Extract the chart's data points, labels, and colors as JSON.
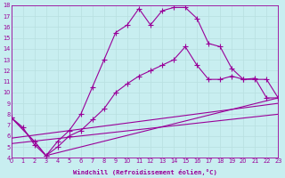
{
  "xlabel": "Windchill (Refroidissement éolien,°C)",
  "bg_color": "#c8eef0",
  "line_color": "#990099",
  "grid_color": "#b8dfe0",
  "xlim": [
    0,
    23
  ],
  "ylim": [
    4,
    18
  ],
  "xticks": [
    0,
    1,
    2,
    3,
    4,
    5,
    6,
    7,
    8,
    9,
    10,
    11,
    12,
    13,
    14,
    15,
    16,
    17,
    18,
    19,
    20,
    21,
    22,
    23
  ],
  "yticks": [
    4,
    5,
    6,
    7,
    8,
    9,
    10,
    11,
    12,
    13,
    14,
    15,
    16,
    17,
    18
  ],
  "curve1_x": [
    0,
    1,
    2,
    3,
    4,
    5,
    6,
    7,
    8,
    9,
    10,
    11,
    12,
    13,
    14,
    15,
    16,
    17,
    18,
    19,
    20,
    21,
    22,
    23
  ],
  "curve1_y": [
    7.7,
    6.8,
    5.2,
    4.2,
    5.5,
    6.5,
    8.0,
    10.5,
    13.0,
    15.5,
    16.2,
    17.7,
    16.2,
    17.5,
    17.8,
    17.8,
    16.8,
    14.5,
    14.2,
    12.2,
    11.2,
    11.2,
    11.2,
    9.5
  ],
  "curve2_x": [
    0,
    2,
    3,
    4,
    5,
    6,
    7,
    8,
    9,
    10,
    11,
    12,
    13,
    14,
    15,
    16,
    17,
    18,
    19,
    20,
    21,
    22,
    23
  ],
  "curve2_y": [
    7.7,
    5.5,
    4.2,
    5.0,
    6.0,
    6.5,
    7.5,
    8.5,
    10.0,
    10.8,
    11.5,
    12.0,
    12.5,
    13.0,
    14.2,
    12.5,
    11.2,
    11.2,
    11.5,
    11.2,
    11.3,
    9.5,
    9.5
  ],
  "line1_x": [
    0,
    2,
    3,
    23
  ],
  "line1_y": [
    7.7,
    5.5,
    4.2,
    9.5
  ],
  "line2_x": [
    0,
    23
  ],
  "line2_y": [
    5.8,
    9.0
  ],
  "line3_x": [
    0,
    23
  ],
  "line3_y": [
    5.3,
    8.0
  ]
}
